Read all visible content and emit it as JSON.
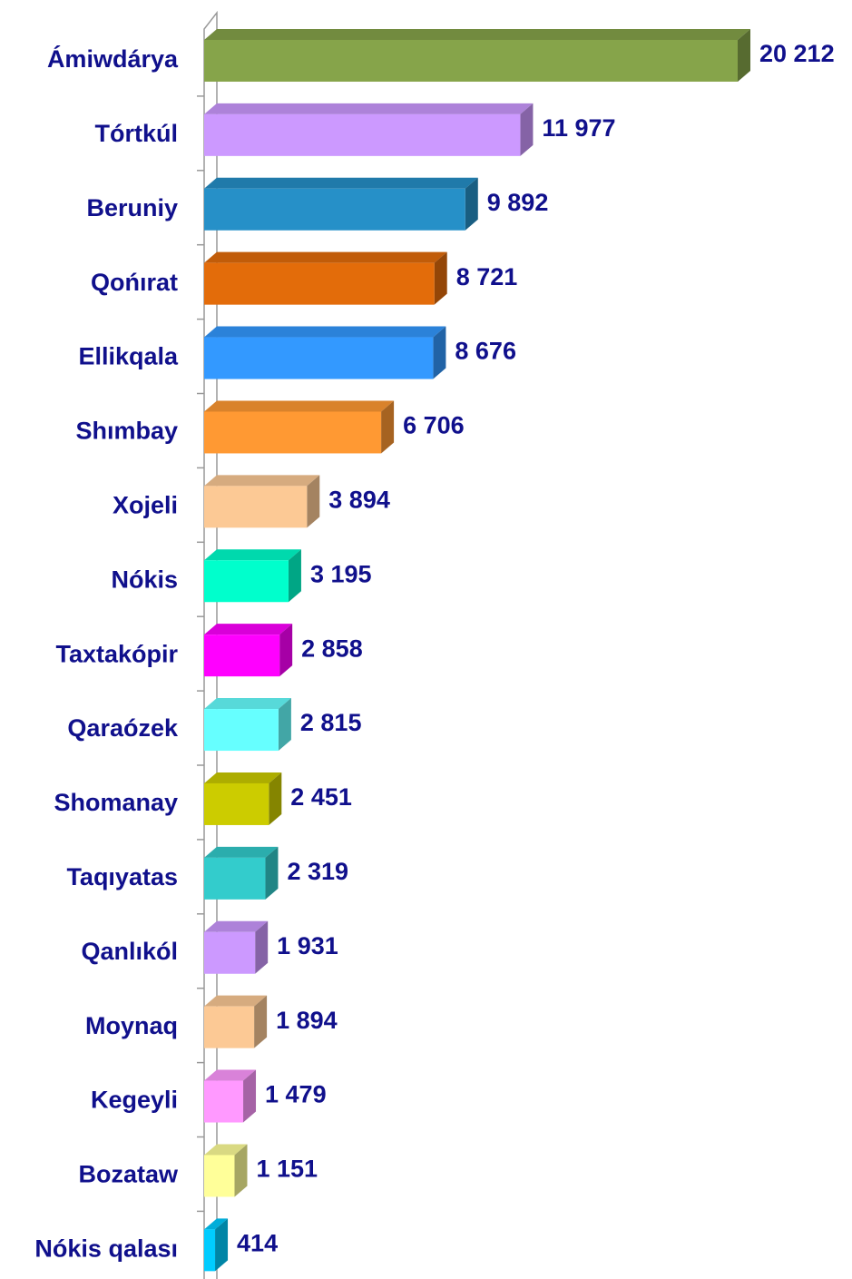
{
  "chart_data": {
    "type": "bar",
    "orientation": "horizontal",
    "categories": [
      "Ámiwdárya",
      "Tórtkúl",
      "Beruniy",
      "Qońırat",
      "Ellikqala",
      "Shımbay",
      "Xojeli",
      "Nókis",
      "Taxtakópir",
      "Qaraózek",
      "Shomanay",
      "Taqıyatas",
      "Qanlıkól",
      "Moynaq",
      "Kegeyli",
      "Bozataw",
      "Nókis qalası"
    ],
    "values": [
      20212,
      11977,
      9892,
      8721,
      8676,
      6706,
      3894,
      3195,
      2858,
      2815,
      2451,
      2319,
      1931,
      1894,
      1479,
      1151,
      414
    ],
    "value_labels": [
      "20 212",
      "11 977",
      "9 892",
      "8 721",
      "8 676",
      "6 706",
      "3 894",
      "3 195",
      "2 858",
      "2 815",
      "2 451",
      "2 319",
      "1 931",
      "1 894",
      "1 479",
      "1 151",
      "414"
    ],
    "colors": [
      "#86a44a",
      "#cc99ff",
      "#2690c8",
      "#e36c0a",
      "#3399ff",
      "#ff9933",
      "#fcc995",
      "#00ffcc",
      "#ff00ff",
      "#66ffff",
      "#cccc00",
      "#33cccc",
      "#cc99ff",
      "#fcc995",
      "#ff99ff",
      "#ffff99",
      "#00ccff"
    ]
  }
}
